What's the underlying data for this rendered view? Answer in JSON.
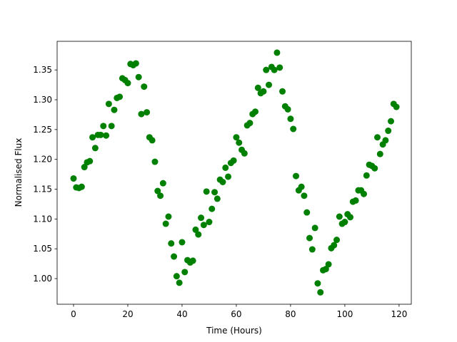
{
  "chart_data": {
    "type": "scatter",
    "xlabel": "Time (Hours)",
    "ylabel": "Normalised Flux",
    "color": "#008000",
    "grid": false,
    "xlim": [
      -6.05,
      124.5
    ],
    "ylim": [
      0.957,
      1.398
    ],
    "xticks": [
      0,
      20,
      40,
      60,
      80,
      100,
      120
    ],
    "yticks": [
      {
        "value": 1.0,
        "label": "1.00"
      },
      1.05,
      {
        "value": 1.1,
        "label": "1.10"
      },
      1.15,
      {
        "value": 1.2,
        "label": "1.20"
      },
      1.25,
      {
        "value": 1.3,
        "label": "1.30"
      },
      1.35
    ],
    "x": [
      0,
      1,
      2,
      3,
      4,
      5,
      6,
      7,
      8,
      9,
      10,
      11,
      12,
      13,
      14,
      15,
      16,
      17,
      18,
      19,
      20,
      21,
      22,
      23,
      24,
      25,
      26,
      27,
      28,
      29,
      30,
      31,
      32,
      33,
      34,
      35,
      36,
      37,
      38,
      39,
      40,
      41,
      42,
      43,
      44,
      45,
      46,
      47,
      48,
      49,
      50,
      51,
      52,
      53,
      54,
      55,
      56,
      57,
      58,
      59,
      60,
      61,
      62,
      63,
      64,
      65,
      66,
      67,
      68,
      69,
      70,
      71,
      72,
      73,
      74,
      75,
      76,
      77,
      78,
      79,
      80,
      81,
      82,
      83,
      84,
      85,
      86,
      87,
      88,
      89,
      90,
      91,
      92,
      93,
      94,
      95,
      96,
      97,
      98,
      99,
      100,
      101,
      102,
      103,
      104,
      105,
      106,
      107,
      108,
      109,
      110,
      111,
      112,
      113,
      114,
      115,
      116,
      117,
      118,
      119
    ],
    "values": [
      1.168,
      1.153,
      1.152,
      1.154,
      1.187,
      1.195,
      1.197,
      1.237,
      1.219,
      1.241,
      1.241,
      1.256,
      1.24,
      1.293,
      1.256,
      1.283,
      1.303,
      1.305,
      1.336,
      1.333,
      1.328,
      1.36,
      1.358,
      1.361,
      1.338,
      1.276,
      1.322,
      1.279,
      1.237,
      1.232,
      1.196,
      1.147,
      1.139,
      1.16,
      1.092,
      1.104,
      1.059,
      1.037,
      1.004,
      0.993,
      1.061,
      1.011,
      1.031,
      1.027,
      1.03,
      1.082,
      1.074,
      1.102,
      1.09,
      1.146,
      1.095,
      1.117,
      1.145,
      1.134,
      1.166,
      1.162,
      1.186,
      1.171,
      1.194,
      1.198,
      1.237,
      1.228,
      1.216,
      1.21,
      1.257,
      1.261,
      1.276,
      1.28,
      1.32,
      1.311,
      1.314,
      1.35,
      1.325,
      1.355,
      1.35,
      1.379,
      1.354,
      1.314,
      1.289,
      1.284,
      1.268,
      1.251,
      1.172,
      1.148,
      1.154,
      1.139,
      1.111,
      1.068,
      1.049,
      1.085,
      0.992,
      0.977,
      1.014,
      1.016,
      1.024,
      1.051,
      1.056,
      1.065,
      1.104,
      1.092,
      1.095,
      1.108,
      1.103,
      1.129,
      1.131,
      1.148,
      1.148,
      1.142,
      1.173,
      1.191,
      1.189,
      1.185,
      1.237,
      1.209,
      1.225,
      1.232,
      1.248,
      1.264,
      1.293,
      1.288
    ]
  }
}
